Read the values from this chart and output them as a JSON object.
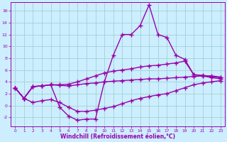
{
  "x": [
    0,
    1,
    2,
    3,
    4,
    5,
    6,
    7,
    8,
    9,
    10,
    11,
    12,
    13,
    14,
    15,
    16,
    17,
    18,
    19,
    20,
    21,
    22,
    23
  ],
  "series_jagged": [
    3.0,
    1.2,
    3.2,
    3.3,
    3.5,
    -0.3,
    -1.8,
    -2.5,
    -2.3,
    -2.3,
    4.0,
    8.5,
    12.0,
    12.0,
    13.5,
    17.0,
    12.0,
    11.5,
    8.5,
    7.8,
    5.2,
    5.0,
    4.7,
    4.5
  ],
  "series_upper": [
    3.0,
    1.2,
    3.2,
    3.3,
    3.5,
    3.5,
    3.6,
    4.0,
    4.5,
    5.0,
    5.5,
    5.8,
    6.0,
    6.2,
    6.5,
    6.7,
    6.8,
    7.0,
    7.2,
    7.5,
    5.2,
    5.1,
    4.9,
    4.7
  ],
  "series_middle": [
    3.0,
    1.2,
    3.2,
    3.3,
    3.5,
    3.4,
    3.3,
    3.5,
    3.7,
    3.8,
    4.0,
    4.1,
    4.2,
    4.3,
    4.4,
    4.5,
    4.5,
    4.6,
    4.7,
    4.8,
    4.9,
    5.0,
    5.0,
    4.8
  ],
  "series_bottom": [
    3.0,
    1.2,
    0.5,
    0.8,
    1.0,
    0.5,
    -0.3,
    -1.0,
    -1.0,
    -0.8,
    -0.5,
    -0.2,
    0.3,
    0.8,
    1.2,
    1.5,
    1.8,
    2.0,
    2.5,
    3.0,
    3.5,
    3.8,
    4.0,
    4.2
  ],
  "line_color": "#9900aa",
  "bg_color": "#cceeff",
  "grid_color": "#99cccc",
  "ylim": [
    -3.5,
    17.5
  ],
  "xlim": [
    -0.5,
    23.5
  ],
  "yticks": [
    -2,
    0,
    2,
    4,
    6,
    8,
    10,
    12,
    14,
    16
  ],
  "xticks": [
    0,
    1,
    2,
    3,
    4,
    5,
    6,
    7,
    8,
    9,
    10,
    11,
    12,
    13,
    14,
    15,
    16,
    17,
    18,
    19,
    20,
    21,
    22,
    23
  ],
  "xlabel": "Windchill (Refroidissement éolien,°C)",
  "marker": "+",
  "markersize": 4,
  "linewidth": 1.0
}
